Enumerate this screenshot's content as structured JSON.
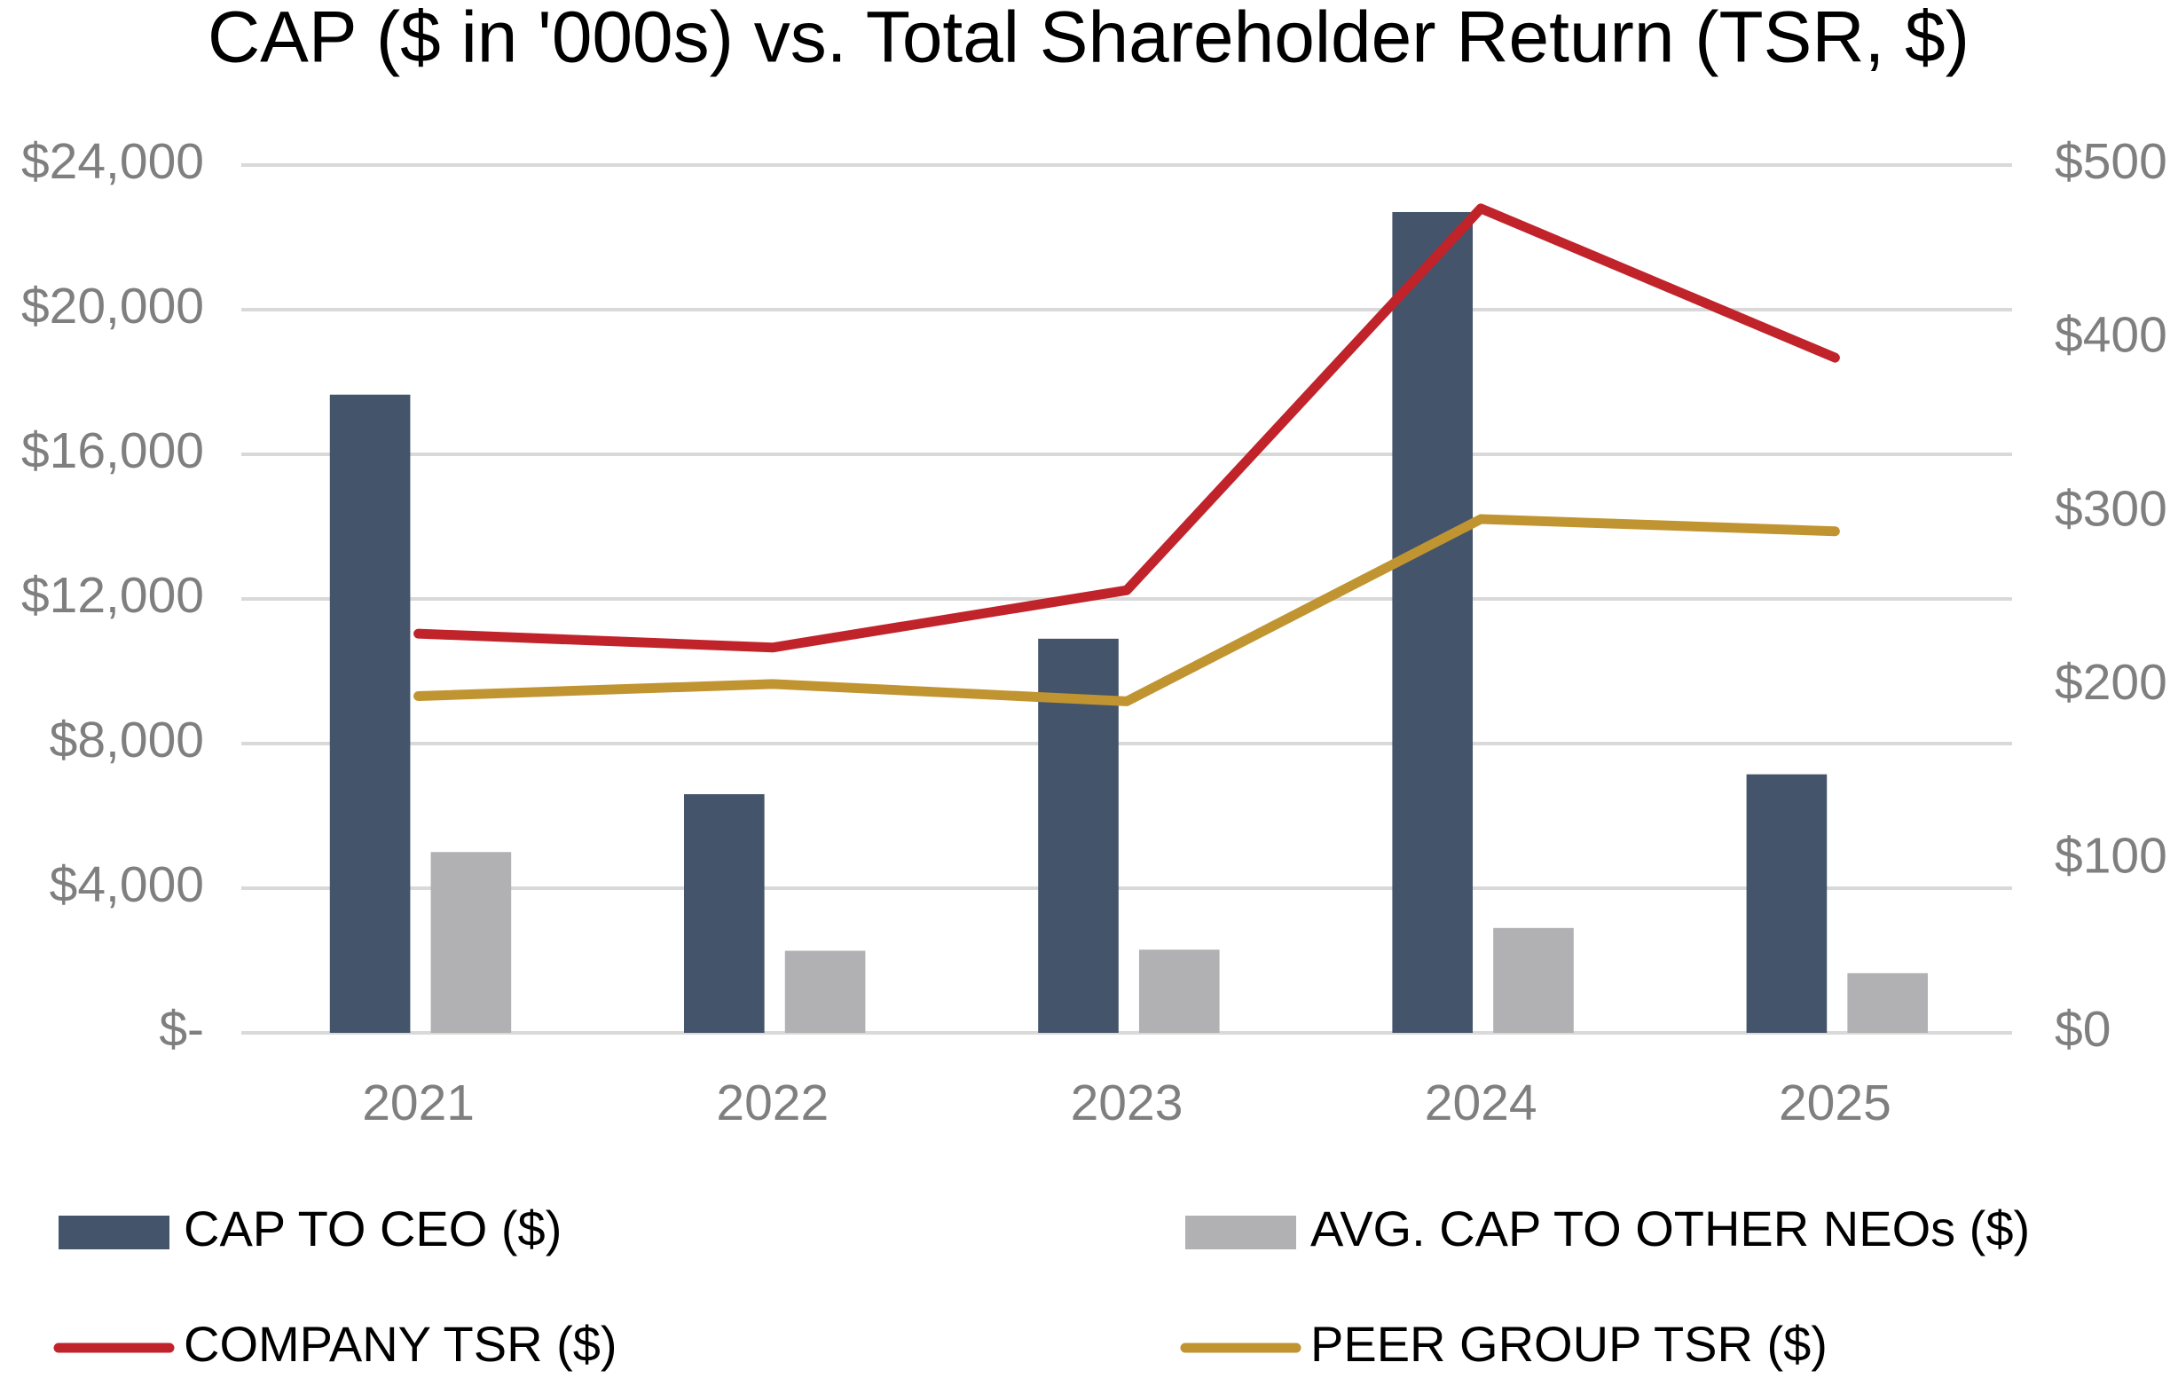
{
  "chart_data": {
    "type": "bar",
    "title": "CAP ($ in '000s) vs. Total Shareholder Return (TSR, $)",
    "categories": [
      "2021",
      "2022",
      "2023",
      "2024",
      "2025"
    ],
    "series": [
      {
        "name": "CAP TO CEO ($)",
        "type": "bar",
        "color": "#44546a",
        "values": [
          17650,
          6600,
          10900,
          22700,
          7150
        ]
      },
      {
        "name": "AVG. CAP TO OTHER NEOs ($)",
        "type": "bar",
        "color": "#b1b1b3",
        "values": [
          5000,
          2270,
          2300,
          2900,
          1650
        ]
      },
      {
        "name": "COMPANY TSR ($)",
        "type": "line",
        "axis": "y2",
        "color": "#c1232b",
        "values": [
          230,
          222,
          255,
          475,
          389
        ]
      },
      {
        "name": "PEER GROUP TSR ($)",
        "type": "line",
        "axis": "y2",
        "color": "#c09431",
        "values": [
          194,
          201,
          191,
          296,
          289
        ]
      }
    ],
    "ylim": [
      0,
      24000
    ],
    "yticks": [
      {
        "value": 0,
        "label": "$-"
      },
      {
        "value": 4000,
        "label": "$4,000"
      },
      {
        "value": 8000,
        "label": "$8,000"
      },
      {
        "value": 12000,
        "label": "$12,000"
      },
      {
        "value": 16000,
        "label": "$16,000"
      },
      {
        "value": 20000,
        "label": "$20,000"
      },
      {
        "value": 24000,
        "label": "$24,000"
      }
    ],
    "y2lim": [
      0,
      500
    ],
    "y2ticks": [
      {
        "value": 0,
        "label": "$0"
      },
      {
        "value": 100,
        "label": "$100"
      },
      {
        "value": 200,
        "label": "$200"
      },
      {
        "value": 300,
        "label": "$300"
      },
      {
        "value": 400,
        "label": "$400"
      },
      {
        "value": 500,
        "label": "$500"
      }
    ],
    "grid": true,
    "legend": "bottom"
  }
}
